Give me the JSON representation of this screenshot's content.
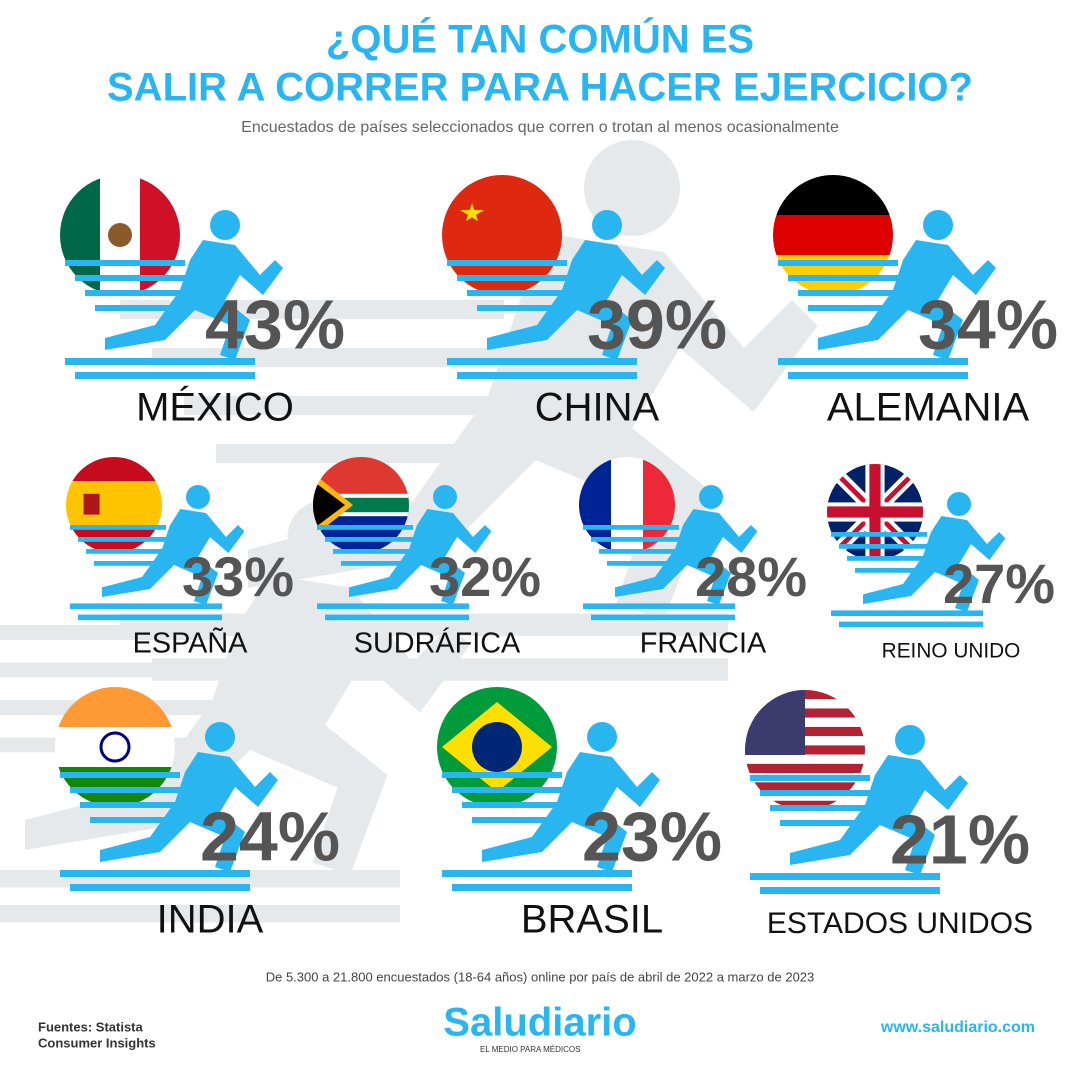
{
  "chart_data": {
    "type": "pictograph",
    "title": [
      "¿QUÉ TAN COMÚN ES",
      "SALIR A CORRER PARA HACER EJERCICIO?"
    ],
    "subtitle": "Encuestados de países seleccionados que corren o trotan al menos ocasionalmente",
    "categories": [
      "MÉXICO",
      "CHINA",
      "ALEMANIA",
      "ESPAÑA",
      "SUDRÁFICA",
      "FRANCIA",
      "REINO UNIDO",
      "INDIA",
      "BRASIL",
      "ESTADOS UNIDOS"
    ],
    "values": [
      43,
      39,
      34,
      33,
      32,
      28,
      27,
      24,
      23,
      21
    ],
    "value_labels": [
      "43%",
      "39%",
      "34%",
      "33%",
      "32%",
      "28%",
      "27%",
      "24%",
      "23%",
      "21%"
    ],
    "color": "#29b6f0",
    "note": "De 5.300 a 21.800 encuestados (18-64 años) online por país de abril de 2022 a marzo de 2023",
    "source": [
      "Fuentes: Statista",
      "Consumer Insights"
    ],
    "brand": "Saludiario",
    "tagline": "EL MEDIO PARA MÉDICOS",
    "url": "www.saludiario.com"
  }
}
